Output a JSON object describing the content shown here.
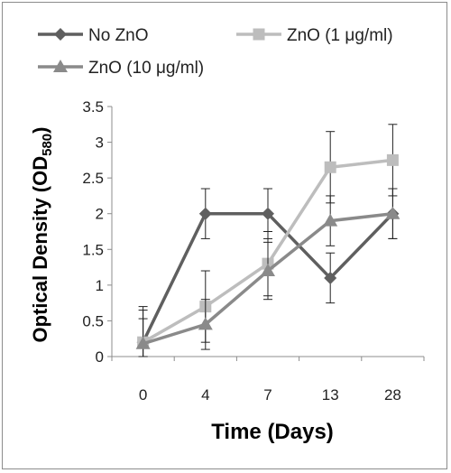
{
  "chart_data": {
    "type": "line",
    "categories": [
      "0",
      "4",
      "7",
      "13",
      "28"
    ],
    "series": [
      {
        "name": "No ZnO",
        "marker": "diamond",
        "color": "#5f5f5f",
        "values": [
          0.2,
          2.0,
          2.0,
          1.1,
          2.0
        ],
        "errors": [
          0.5,
          0.35,
          0.35,
          0.35,
          0.35
        ]
      },
      {
        "name": "ZnO (1 μg/ml)",
        "marker": "square",
        "color": "#bdbdbd",
        "values": [
          0.2,
          0.7,
          1.3,
          2.65,
          2.75
        ],
        "errors": [
          0.45,
          0.5,
          0.45,
          0.5,
          0.5
        ]
      },
      {
        "name": "ZnO (10 μg/ml)",
        "marker": "triangle",
        "color": "#8a8a8a",
        "values": [
          0.18,
          0.45,
          1.2,
          1.9,
          2.0
        ],
        "errors": [
          0.35,
          0.35,
          0.4,
          0.35,
          0.35
        ]
      }
    ],
    "y_ticks": [
      "0",
      "0.5",
      "1",
      "1.5",
      "2",
      "2.5",
      "3",
      "3.5"
    ],
    "ylim": [
      0,
      3.5
    ],
    "xlabel": "Time (Days)",
    "ylabel_main": "Optical Density (OD",
    "ylabel_sub": "580",
    "ylabel_end": ")",
    "legend_position": "top",
    "grid": false
  }
}
